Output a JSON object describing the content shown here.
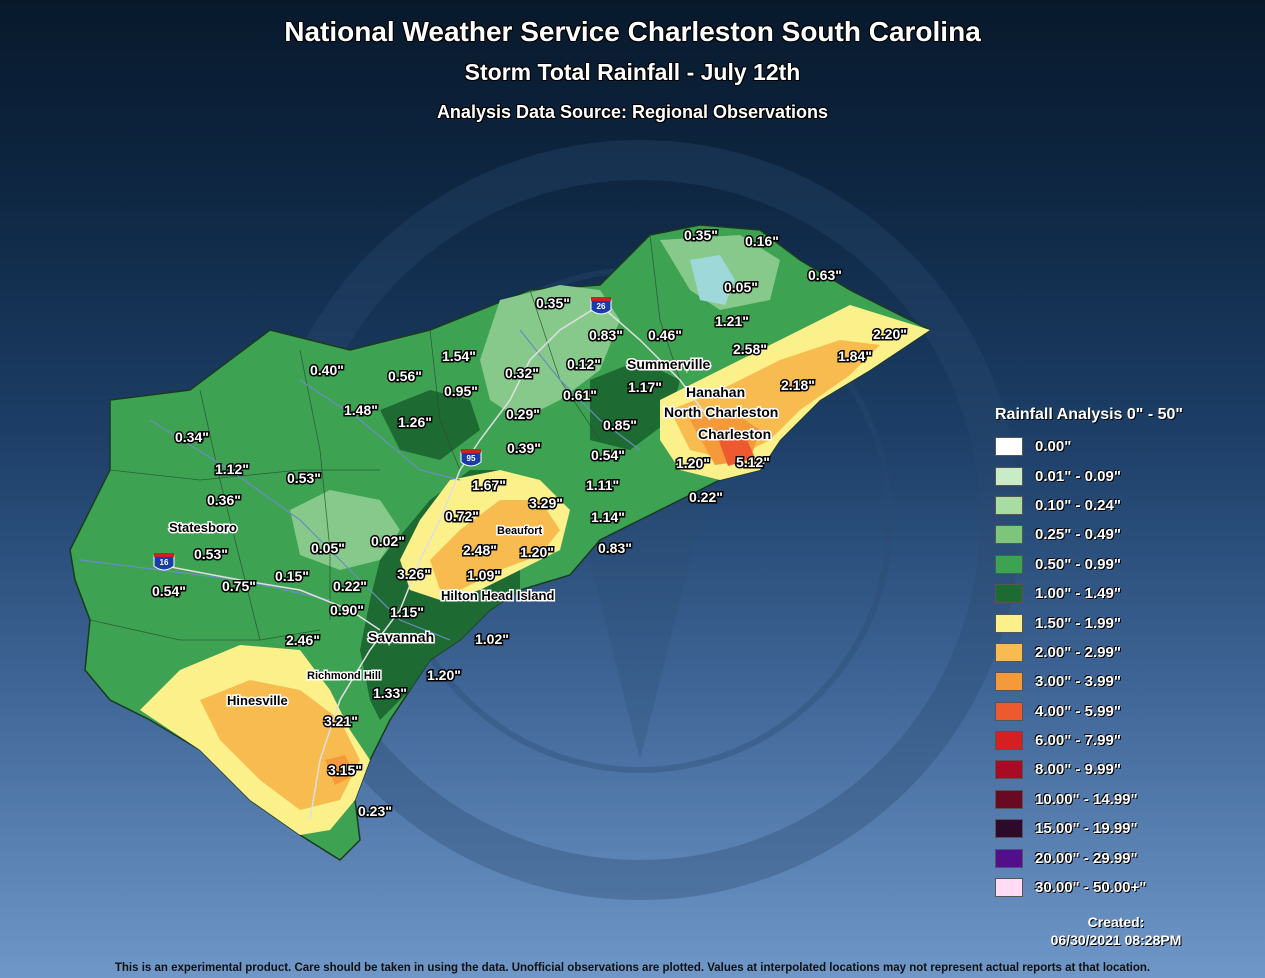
{
  "header": {
    "title": "National Weather Service Charleston South Carolina",
    "subtitle": "Storm Total Rainfall - July 12th",
    "source": "Analysis Data Source: Regional Observations"
  },
  "colors": {
    "green_light": "#86c98a",
    "green_mid": "#3ea253",
    "green_dark": "#1d6b32",
    "yellow": "#fcf08a",
    "orange_light": "#f8bb50",
    "orange": "#f59a3a",
    "red_orange": "#ee5a30",
    "light_blue": "#9fd8d8"
  },
  "rainfall_values": [
    "0.35\"",
    "0.16\"",
    "0.63\"",
    "0.05\"",
    "0.35\"",
    "0.83\"",
    "0.46\"",
    "1.21\"",
    "2.20\"",
    "2.58\"",
    "1.84\"",
    "1.54\"",
    "0.40\"",
    "0.56\"",
    "0.32\"",
    "0.12\"",
    "0.95\"",
    "0.61\"",
    "1.17\"",
    "2.18\"",
    "1.48\"",
    "1.26\"",
    "0.29\"",
    "0.85\"",
    "0.34\"",
    "0.39\"",
    "0.54\"",
    "1.12\"",
    "0.53\"",
    "1.20\"",
    "5.12\"",
    "1.67\"",
    "1.11\"",
    "0.36\"",
    "3.29\"",
    "0.22\"",
    "0.72\"",
    "1.14\"",
    "0.05\"",
    "0.02\"",
    "2.48\"",
    "1.20\"",
    "0.83\"",
    "0.53\"",
    "3.26\"",
    "1.09\"",
    "0.54\"",
    "0.75\"",
    "0.15\"",
    "0.22\"",
    "0.90\"",
    "1.15\"",
    "2.46\"",
    "1.02\"",
    "1.20\"",
    "1.33\"",
    "3.21\"",
    "3.15\"",
    "0.23\""
  ],
  "cities": {
    "summerville": "Summerville",
    "hanahan": "Hanahan",
    "north_charleston": "North Charleston",
    "charleston": "Charleston",
    "statesboro": "Statesboro",
    "beaufort": "Beaufort",
    "hilton_head": "Hilton Head Island",
    "savannah": "Savannah",
    "richmond_hill": "Richmond Hill",
    "hinesville": "Hinesville"
  },
  "highways": {
    "i26": "26",
    "i95": "95",
    "i16": "16"
  },
  "legend": {
    "title": "Rainfall Analysis 0\" - 50\"",
    "items": [
      {
        "label": "0.00\"",
        "color": "#ffffff"
      },
      {
        "label": "0.01\" - 0.09\"",
        "color": "#c9ecc6"
      },
      {
        "label": "0.10\" - 0.24\"",
        "color": "#a8dca3"
      },
      {
        "label": "0.25\" - 0.49\"",
        "color": "#7cc67c"
      },
      {
        "label": "0.50\" - 0.99\"",
        "color": "#3ea253"
      },
      {
        "label": "1.00\" - 1.49\"",
        "color": "#1d6b32"
      },
      {
        "label": "1.50\" - 1.99\"",
        "color": "#fcf08a"
      },
      {
        "label": "2.00\" - 2.99\"",
        "color": "#f8bb50"
      },
      {
        "label": "3.00\" - 3.99\"",
        "color": "#f59a3a"
      },
      {
        "label": "4.00\" - 5.99\"",
        "color": "#ee5a30"
      },
      {
        "label": "6.00\" - 7.99\"",
        "color": "#d42020"
      },
      {
        "label": "8.00\" - 9.99\"",
        "color": "#a80c24"
      },
      {
        "label": "10.00\" - 14.99\"",
        "color": "#6a0a22"
      },
      {
        "label": "15.00\" - 19.99\"",
        "color": "#2e0a2a"
      },
      {
        "label": "20.00\" - 29.99\"",
        "color": "#520f8a"
      },
      {
        "label": "30.00\" - 50.00+\"",
        "color": "#ffdcf4"
      }
    ]
  },
  "created": {
    "label": "Created:",
    "datetime": "06/30/2021 08:28PM"
  },
  "disclaimer": "This is an experimental product. Care should be taken in using the data. Unofficial observations are plotted. Values at interpolated locations may not represent actual reports at that location."
}
